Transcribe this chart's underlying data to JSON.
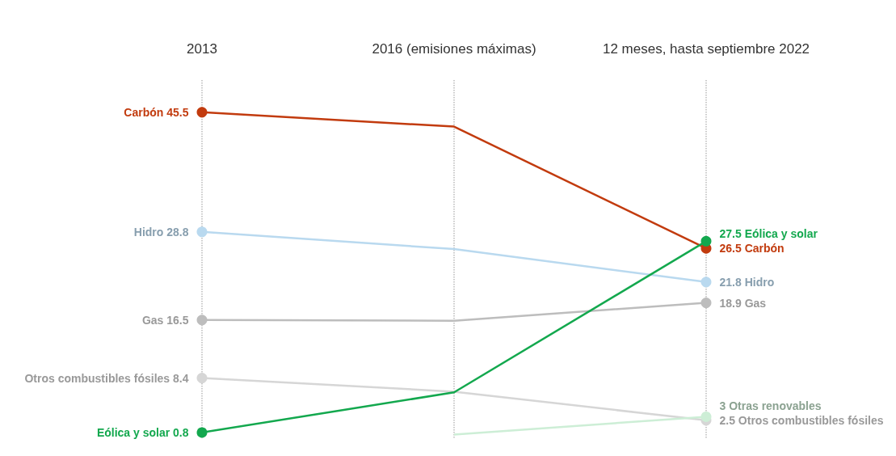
{
  "chart_data": {
    "type": "line",
    "categories": [
      "2013",
      "2016 (emisiones máximas)",
      "12 meses, hasta septiembre 2022"
    ],
    "series": [
      {
        "color": "#c23b0e",
        "values": [
          45.5,
          43.5,
          26.5
        ],
        "value_labels": [
          "Carbón 45.5",
          null,
          "26.5 Carbón"
        ]
      },
      {
        "color": "#b9d9ef",
        "values": [
          28.8,
          26.4,
          21.8
        ],
        "value_labels": [
          "Hidro 28.8",
          null,
          "21.8 Hidro"
        ]
      },
      {
        "color": "#bdbdbd",
        "values": [
          16.5,
          16.4,
          18.9
        ],
        "value_labels": [
          "Gas 16.5",
          null,
          "18.9 Gas"
        ]
      },
      {
        "color": "#d6d6d6",
        "values": [
          8.4,
          6.5,
          2.5
        ],
        "value_labels": [
          "Otros combustibles fósiles 8.4",
          null,
          "2.5 Otros combustibles fósiles"
        ]
      },
      {
        "color": "#cdeed6",
        "values": [
          null,
          0.5,
          3
        ],
        "value_labels": [
          null,
          null,
          "3 Otras renovables"
        ]
      },
      {
        "color": "#13a84e",
        "values": [
          0.8,
          6.4,
          27.5
        ],
        "value_labels": [
          "Eólica y solar 0.8",
          null,
          "27.5 Eólica y solar"
        ]
      }
    ],
    "grid": "x",
    "marker": "circle",
    "line_style": "solid"
  }
}
